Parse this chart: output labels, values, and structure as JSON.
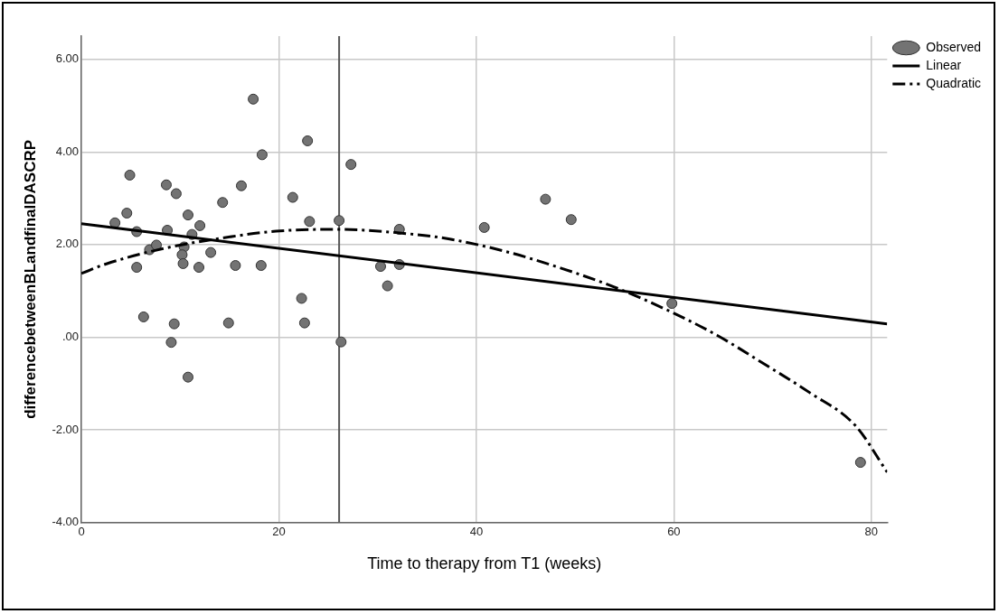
{
  "chart_data": {
    "type": "scatter",
    "xlabel": "Time to therapy from T1 (weeks)",
    "ylabel": "differencebetweenBLandfinalDASCRP",
    "xlim": [
      0,
      81.6
    ],
    "xticks": [
      0,
      20,
      40,
      60,
      80
    ],
    "ylim": [
      -4,
      6.5
    ],
    "yticks": [
      {
        "value": -4,
        "label": "-4.00"
      },
      {
        "value": -2,
        "label": "-2.00"
      },
      {
        "value": 0,
        "label": ".00"
      },
      {
        "value": 2,
        "label": "2.00"
      },
      {
        "value": 4,
        "label": "4.00"
      },
      {
        "value": 6,
        "label": "6.00"
      }
    ],
    "grid": true,
    "legend": "top right",
    "ref_lines": [
      {
        "axis": "x",
        "value": 26.1,
        "color": "#555555"
      }
    ],
    "series": [
      {
        "name": "Observed",
        "marker": "circle",
        "color": "#737373",
        "x": [
          3.4,
          4.6,
          4.9,
          5.6,
          5.6,
          6.3,
          6.9,
          7.6,
          8.6,
          8.7,
          9.6,
          9.4,
          9.1,
          10.8,
          10.8,
          11.2,
          12.0,
          10.4,
          10.2,
          10.3,
          11.9,
          13.1,
          14.3,
          14.9,
          15.6,
          16.2,
          17.4,
          18.3,
          18.2,
          21.4,
          22.3,
          22.6,
          22.9,
          23.1,
          26.1,
          26.3,
          27.3,
          30.3,
          31.0,
          32.2,
          32.2,
          40.8,
          47.0,
          49.6,
          59.8,
          78.9
        ],
        "values": [
          2.47,
          2.68,
          3.5,
          2.28,
          1.51,
          0.44,
          1.89,
          1.99,
          3.29,
          2.31,
          3.1,
          0.29,
          -0.11,
          2.64,
          -0.86,
          2.22,
          2.41,
          1.95,
          1.78,
          1.59,
          1.51,
          1.83,
          2.91,
          0.31,
          1.55,
          3.27,
          5.14,
          3.94,
          1.55,
          3.02,
          0.84,
          0.31,
          4.24,
          2.5,
          2.52,
          -0.1,
          3.73,
          1.53,
          1.11,
          2.33,
          1.57,
          2.37,
          2.98,
          2.54,
          0.73,
          -2.7
        ]
      },
      {
        "name": "Linear",
        "type": "line",
        "marker": "none",
        "line_style": "solid",
        "color": "#000000",
        "x": [
          0,
          81.6
        ],
        "values": [
          2.45,
          0.29
        ]
      },
      {
        "name": "Quadratic",
        "type": "line",
        "marker": "none",
        "line_style": "dashed",
        "color": "#000000",
        "x": [
          0,
          2.6,
          8.2,
          14.2,
          19.7,
          25.7,
          33.8,
          37.3,
          43.0,
          48.6,
          53.9,
          59.3,
          64.4,
          69.1,
          73.8,
          78.4,
          81.6
        ],
        "values": [
          1.38,
          1.59,
          1.91,
          2.14,
          2.29,
          2.33,
          2.22,
          2.12,
          1.85,
          1.49,
          1.09,
          0.59,
          0.04,
          -0.57,
          -1.2,
          -1.91,
          -2.91
        ]
      }
    ]
  }
}
